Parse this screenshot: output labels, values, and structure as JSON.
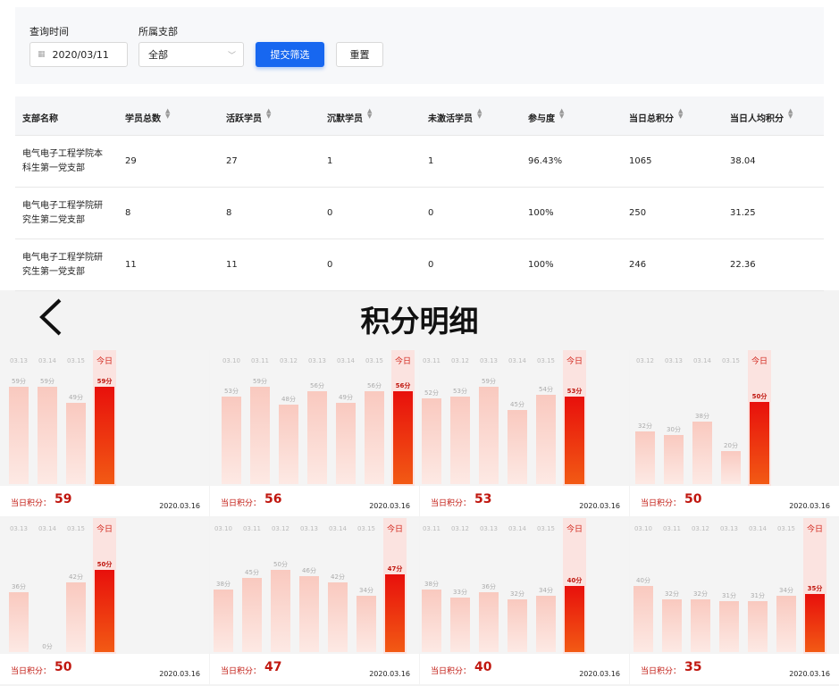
{
  "filter": {
    "time_label": "查询时间",
    "date": "2020/03/11",
    "branch_label": "所属支部",
    "branch": "全部",
    "submit": "提交筛选",
    "reset": "重置"
  },
  "table": {
    "headers": [
      "支部名称",
      "学员总数",
      "活跃学员",
      "沉默学员",
      "未激活学员",
      "参与度",
      "当日总积分",
      "当日人均积分"
    ],
    "rows": [
      [
        "电气电子工程学院本科生第一党支部",
        "29",
        "27",
        "1",
        "1",
        "96.43%",
        "1065",
        "38.04"
      ],
      [
        "电气电子工程学院研究生第二党支部",
        "8",
        "8",
        "0",
        "0",
        "100%",
        "250",
        "31.25"
      ],
      [
        "电气电子工程学院研究生第一党支部",
        "11",
        "11",
        "0",
        "0",
        "100%",
        "246",
        "22.36"
      ]
    ]
  },
  "detail": {
    "title": "积分明细",
    "today_label": "今日",
    "score_label": "当日积分：",
    "cards": [
      {
        "dates": [
          "03.13",
          "03.14",
          "03.15"
        ],
        "values": [
          59,
          59,
          49
        ],
        "value_labels": [
          "59分",
          "59分",
          "49分"
        ],
        "today_value": 59,
        "today_label": "59分",
        "score": "59",
        "date": "2020.03.16"
      },
      {
        "dates": [
          "03.10",
          "03.11",
          "03.12",
          "03.13",
          "03.14",
          "03.15"
        ],
        "values": [
          53,
          59,
          48,
          56,
          49,
          56
        ],
        "value_labels": [
          "53分",
          "59分",
          "48分",
          "56分",
          "49分",
          "56分"
        ],
        "today_value": 56,
        "today_label": "56分",
        "score": "56",
        "date": "2020.03.16"
      },
      {
        "dates": [
          "03.11",
          "03.12",
          "03.13",
          "03.14",
          "03.15"
        ],
        "values": [
          52,
          53,
          59,
          45,
          54
        ],
        "value_labels": [
          "52分",
          "53分",
          "59分",
          "45分",
          "54分"
        ],
        "today_value": 53,
        "today_label": "53分",
        "score": "53",
        "date": "2020.03.16"
      },
      {
        "dates": [
          "03.12",
          "03.13",
          "03.14",
          "03.15"
        ],
        "values": [
          32,
          30,
          38,
          20
        ],
        "value_labels": [
          "32分",
          "30分",
          "38分",
          "20分"
        ],
        "today_value": 50,
        "today_label": "50分",
        "score": "50",
        "date": "2020.03.16"
      },
      {
        "dates": [
          "03.13",
          "03.14",
          "03.15"
        ],
        "values": [
          36,
          0,
          42
        ],
        "value_labels": [
          "36分",
          "0分",
          "42分"
        ],
        "today_value": 50,
        "today_label": "50分",
        "score": "50",
        "date": "2020.03.16"
      },
      {
        "dates": [
          "03.10",
          "03.11",
          "03.12",
          "03.13",
          "03.14",
          "03.15"
        ],
        "values": [
          38,
          45,
          50,
          46,
          42,
          34
        ],
        "value_labels": [
          "38分",
          "45分",
          "50分",
          "46分",
          "42分",
          "34分"
        ],
        "today_value": 47,
        "today_label": "47分",
        "score": "47",
        "date": "2020.03.16"
      },
      {
        "dates": [
          "03.11",
          "03.12",
          "03.13",
          "03.14",
          "03.15"
        ],
        "values": [
          38,
          33,
          36,
          32,
          34
        ],
        "value_labels": [
          "38分",
          "33分",
          "36分",
          "32分",
          "34分"
        ],
        "today_value": 40,
        "today_label": "40分",
        "score": "40",
        "date": "2020.03.16"
      },
      {
        "dates": [
          "03.10",
          "03.11",
          "03.12",
          "03.13",
          "03.14",
          "03.15"
        ],
        "values": [
          40,
          32,
          32,
          31,
          31,
          34
        ],
        "value_labels": [
          "40分",
          "32分",
          "32分",
          "31分",
          "31分",
          "34分"
        ],
        "today_value": 35,
        "today_label": "35分",
        "score": "35",
        "date": "2020.03.16"
      }
    ]
  }
}
